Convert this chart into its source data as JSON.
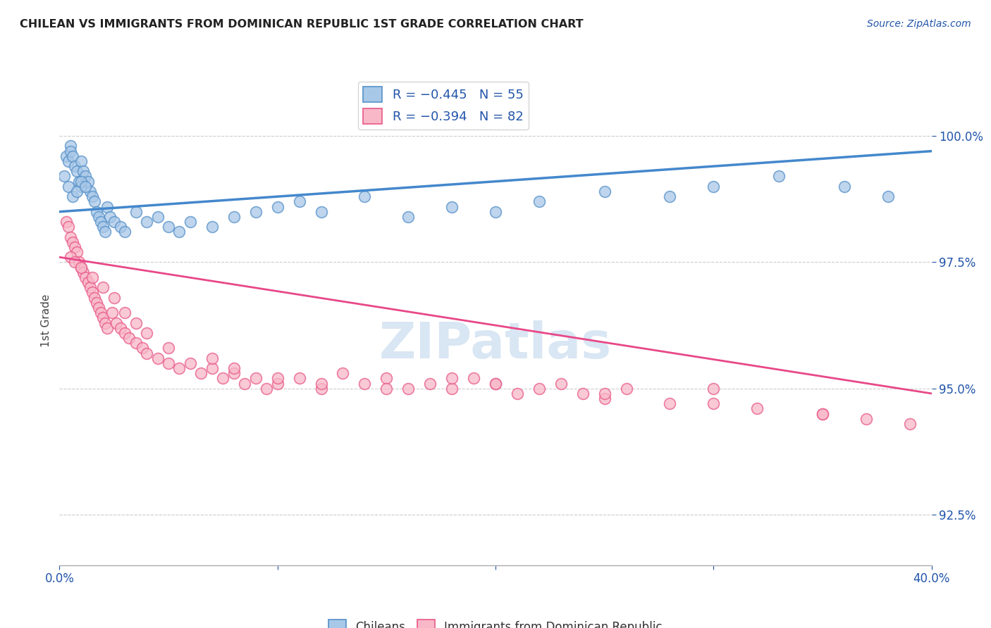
{
  "title": "CHILEAN VS IMMIGRANTS FROM DOMINICAN REPUBLIC 1ST GRADE CORRELATION CHART",
  "source": "Source: ZipAtlas.com",
  "ylabel": "1st Grade",
  "xlim": [
    0.0,
    40.0
  ],
  "ylim": [
    91.5,
    101.2
  ],
  "yticks": [
    92.5,
    95.0,
    97.5,
    100.0
  ],
  "ytick_labels": [
    "92.5%",
    "95.0%",
    "97.5%",
    "100.0%"
  ],
  "blue_color": "#a8c8e8",
  "blue_edge": "#5590c8",
  "pink_color": "#f8b8c8",
  "pink_edge": "#e85888",
  "trend_blue_color": "#4488cc",
  "trend_pink_color": "#e84888",
  "watermark_color": "#d0e0f0",
  "title_color": "#222222",
  "tick_color": "#2255aa",
  "legend_text_color": "#2255aa",
  "blue_x": [
    0.2,
    0.3,
    0.4,
    0.5,
    0.5,
    0.6,
    0.7,
    0.8,
    0.9,
    1.0,
    1.0,
    1.1,
    1.2,
    1.3,
    1.4,
    1.5,
    1.6,
    1.7,
    1.8,
    1.9,
    2.0,
    2.1,
    2.2,
    2.3,
    2.5,
    2.8,
    3.0,
    3.5,
    4.0,
    4.5,
    5.0,
    5.5,
    6.0,
    7.0,
    8.0,
    9.0,
    10.0,
    11.0,
    12.0,
    14.0,
    16.0,
    18.0,
    20.0,
    22.0,
    25.0,
    28.0,
    30.0,
    33.0,
    36.0,
    38.0,
    0.4,
    0.6,
    0.8,
    1.0,
    1.2
  ],
  "blue_y": [
    99.2,
    99.6,
    99.5,
    99.8,
    99.7,
    99.6,
    99.4,
    99.3,
    99.1,
    99.0,
    99.5,
    99.3,
    99.2,
    99.1,
    98.9,
    98.8,
    98.7,
    98.5,
    98.4,
    98.3,
    98.2,
    98.1,
    98.6,
    98.4,
    98.3,
    98.2,
    98.1,
    98.5,
    98.3,
    98.4,
    98.2,
    98.1,
    98.3,
    98.2,
    98.4,
    98.5,
    98.6,
    98.7,
    98.5,
    98.8,
    98.4,
    98.6,
    98.5,
    98.7,
    98.9,
    98.8,
    99.0,
    99.2,
    99.0,
    98.8,
    99.0,
    98.8,
    98.9,
    99.1,
    99.0
  ],
  "pink_x": [
    0.3,
    0.4,
    0.5,
    0.6,
    0.7,
    0.8,
    0.9,
    1.0,
    1.1,
    1.2,
    1.3,
    1.4,
    1.5,
    1.6,
    1.7,
    1.8,
    1.9,
    2.0,
    2.1,
    2.2,
    2.4,
    2.6,
    2.8,
    3.0,
    3.2,
    3.5,
    3.8,
    4.0,
    4.5,
    5.0,
    5.5,
    6.0,
    6.5,
    7.0,
    7.5,
    8.0,
    8.5,
    9.0,
    9.5,
    10.0,
    11.0,
    12.0,
    13.0,
    14.0,
    15.0,
    16.0,
    17.0,
    18.0,
    19.0,
    20.0,
    21.0,
    22.0,
    23.0,
    24.0,
    25.0,
    26.0,
    28.0,
    30.0,
    32.0,
    35.0,
    37.0,
    39.0,
    0.5,
    0.7,
    1.0,
    1.5,
    2.0,
    2.5,
    3.0,
    3.5,
    4.0,
    5.0,
    7.0,
    8.0,
    10.0,
    12.0,
    15.0,
    18.0,
    20.0,
    25.0,
    30.0,
    35.0
  ],
  "pink_y": [
    98.3,
    98.2,
    98.0,
    97.9,
    97.8,
    97.7,
    97.5,
    97.4,
    97.3,
    97.2,
    97.1,
    97.0,
    96.9,
    96.8,
    96.7,
    96.6,
    96.5,
    96.4,
    96.3,
    96.2,
    96.5,
    96.3,
    96.2,
    96.1,
    96.0,
    95.9,
    95.8,
    95.7,
    95.6,
    95.5,
    95.4,
    95.5,
    95.3,
    95.4,
    95.2,
    95.3,
    95.1,
    95.2,
    95.0,
    95.1,
    95.2,
    95.0,
    95.3,
    95.1,
    95.2,
    95.0,
    95.1,
    95.0,
    95.2,
    95.1,
    94.9,
    95.0,
    95.1,
    94.9,
    94.8,
    95.0,
    94.7,
    95.0,
    94.6,
    94.5,
    94.4,
    94.3,
    97.6,
    97.5,
    97.4,
    97.2,
    97.0,
    96.8,
    96.5,
    96.3,
    96.1,
    95.8,
    95.6,
    95.4,
    95.2,
    95.1,
    95.0,
    95.2,
    95.1,
    94.9,
    94.7,
    94.5
  ],
  "blue_trend_x0": 0.0,
  "blue_trend_x1": 40.0,
  "blue_trend_y0": 98.5,
  "blue_trend_y1": 99.7,
  "pink_trend_x0": 0.0,
  "pink_trend_x1": 40.0,
  "pink_trend_y0": 97.6,
  "pink_trend_y1": 94.9
}
